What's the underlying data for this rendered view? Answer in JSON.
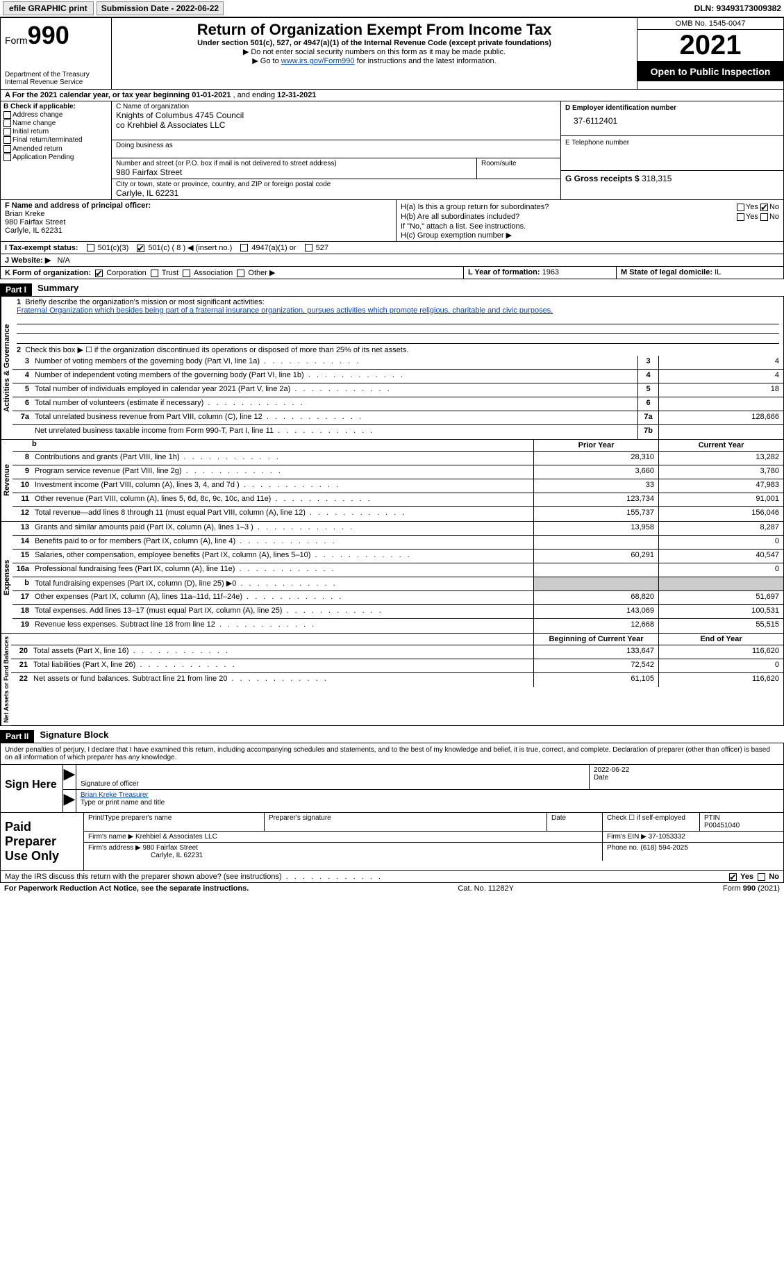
{
  "topbar": {
    "efile_btn": "efile GRAPHIC print",
    "sub_date_label": "Submission Date - 2022-06-22",
    "dln": "DLN: 93493173009382"
  },
  "header": {
    "form_word": "Form",
    "form_num": "990",
    "dept": "Department of the Treasury",
    "irs": "Internal Revenue Service",
    "title": "Return of Organization Exempt From Income Tax",
    "sub": "Under section 501(c), 527, or 4947(a)(1) of the Internal Revenue Code (except private foundations)",
    "note1": "▶ Do not enter social security numbers on this form as it may be made public.",
    "note2_pre": "▶ Go to ",
    "note2_link": "www.irs.gov/Form990",
    "note2_post": " for instructions and the latest information.",
    "omb": "OMB No. 1545-0047",
    "year": "2021",
    "open": "Open to Public Inspection"
  },
  "section_a": {
    "text_pre": "A For the 2021 calendar year, or tax year beginning ",
    "begin": "01-01-2021",
    "mid": " , and ending ",
    "end": "12-31-2021"
  },
  "col_b": {
    "hdr": "B Check if applicable:",
    "items": [
      "Address change",
      "Name change",
      "Initial return",
      "Final return/terminated",
      "Amended return",
      "Application Pending"
    ]
  },
  "col_c": {
    "name_lbl": "C Name of organization",
    "name1": "Knights of Columbus 4745 Council",
    "name2": "co Krehbiel & Associates LLC",
    "dba_lbl": "Doing business as",
    "addr_lbl": "Number and street (or P.O. box if mail is not delivered to street address)",
    "addr": "980 Fairfax Street",
    "room_lbl": "Room/suite",
    "city_lbl": "City or town, state or province, country, and ZIP or foreign postal code",
    "city": "Carlyle, IL  62231"
  },
  "col_d": {
    "d_lbl": "D Employer identification number",
    "ein": "37-6112401",
    "e_lbl": "E Telephone number",
    "g_lbl": "G Gross receipts $",
    "g_val": "318,315"
  },
  "officer": {
    "f_lbl": "F Name and address of principal officer:",
    "name": "Brian Kreke",
    "addr": "980 Fairfax Street",
    "city": "Carlyle, IL  62231",
    "ha": "H(a)  Is this a group return for subordinates?",
    "hb": "H(b)  Are all subordinates included?",
    "hb_note": "If \"No,\" attach a list. See instructions.",
    "hc": "H(c)  Group exemption number ▶",
    "yes": "Yes",
    "no": "No"
  },
  "status": {
    "i_lbl": "I  Tax-exempt status:",
    "c3": "501(c)(3)",
    "c_other": "501(c) ( 8 ) ◀ (insert no.)",
    "a4947": "4947(a)(1) or",
    "s527": "527"
  },
  "website": {
    "j_lbl": "J  Website: ▶",
    "val": "N/A"
  },
  "k_row": {
    "k_lbl": "K Form of organization:",
    "corp": "Corporation",
    "trust": "Trust",
    "assoc": "Association",
    "other": "Other ▶",
    "l_lbl": "L Year of formation:",
    "l_val": "1963",
    "m_lbl": "M State of legal domicile:",
    "m_val": "IL"
  },
  "part1": {
    "hdr": "Part I",
    "title": "Summary",
    "line1_lbl": "Briefly describe the organization's mission or most significant activities:",
    "line1_text": "Fraternal Organization which besides being part of a fraternal insurance organization, pursues activities which promote religious, charitable and civic purposes.",
    "line2": "Check this box ▶ ☐ if the organization discontinued its operations or disposed of more than 25% of its net assets.",
    "rows_gov": [
      {
        "n": "3",
        "d": "Number of voting members of the governing body (Part VI, line 1a)",
        "box": "3",
        "v": "4"
      },
      {
        "n": "4",
        "d": "Number of independent voting members of the governing body (Part VI, line 1b)",
        "box": "4",
        "v": "4"
      },
      {
        "n": "5",
        "d": "Total number of individuals employed in calendar year 2021 (Part V, line 2a)",
        "box": "5",
        "v": "18"
      },
      {
        "n": "6",
        "d": "Total number of volunteers (estimate if necessary)",
        "box": "6",
        "v": ""
      },
      {
        "n": "7a",
        "d": "Total unrelated business revenue from Part VIII, column (C), line 12",
        "box": "7a",
        "v": "128,666"
      },
      {
        "n": "",
        "d": "Net unrelated business taxable income from Form 990-T, Part I, line 11",
        "box": "7b",
        "v": ""
      }
    ],
    "prior_hdr": "Prior Year",
    "curr_hdr": "Current Year",
    "rows_rev": [
      {
        "n": "8",
        "d": "Contributions and grants (Part VIII, line 1h)",
        "p": "28,310",
        "c": "13,282"
      },
      {
        "n": "9",
        "d": "Program service revenue (Part VIII, line 2g)",
        "p": "3,660",
        "c": "3,780"
      },
      {
        "n": "10",
        "d": "Investment income (Part VIII, column (A), lines 3, 4, and 7d )",
        "p": "33",
        "c": "47,983"
      },
      {
        "n": "11",
        "d": "Other revenue (Part VIII, column (A), lines 5, 6d, 8c, 9c, 10c, and 11e)",
        "p": "123,734",
        "c": "91,001"
      },
      {
        "n": "12",
        "d": "Total revenue—add lines 8 through 11 (must equal Part VIII, column (A), line 12)",
        "p": "155,737",
        "c": "156,046"
      }
    ],
    "rows_exp": [
      {
        "n": "13",
        "d": "Grants and similar amounts paid (Part IX, column (A), lines 1–3 )",
        "p": "13,958",
        "c": "8,287"
      },
      {
        "n": "14",
        "d": "Benefits paid to or for members (Part IX, column (A), line 4)",
        "p": "",
        "c": "0"
      },
      {
        "n": "15",
        "d": "Salaries, other compensation, employee benefits (Part IX, column (A), lines 5–10)",
        "p": "60,291",
        "c": "40,547"
      },
      {
        "n": "16a",
        "d": "Professional fundraising fees (Part IX, column (A), line 11e)",
        "p": "",
        "c": "0"
      },
      {
        "n": "b",
        "d": "Total fundraising expenses (Part IX, column (D), line 25) ▶0",
        "p": "GRAY",
        "c": "GRAY"
      },
      {
        "n": "17",
        "d": "Other expenses (Part IX, column (A), lines 11a–11d, 11f–24e)",
        "p": "68,820",
        "c": "51,697"
      },
      {
        "n": "18",
        "d": "Total expenses. Add lines 13–17 (must equal Part IX, column (A), line 25)",
        "p": "143,069",
        "c": "100,531"
      },
      {
        "n": "19",
        "d": "Revenue less expenses. Subtract line 18 from line 12",
        "p": "12,668",
        "c": "55,515"
      }
    ],
    "beg_hdr": "Beginning of Current Year",
    "end_hdr": "End of Year",
    "rows_net": [
      {
        "n": "20",
        "d": "Total assets (Part X, line 16)",
        "p": "133,647",
        "c": "116,620"
      },
      {
        "n": "21",
        "d": "Total liabilities (Part X, line 26)",
        "p": "72,542",
        "c": "0"
      },
      {
        "n": "22",
        "d": "Net assets or fund balances. Subtract line 21 from line 20",
        "p": "61,105",
        "c": "116,620"
      }
    ],
    "side_gov": "Activities & Governance",
    "side_rev": "Revenue",
    "side_exp": "Expenses",
    "side_net": "Net Assets or Fund Balances"
  },
  "part2": {
    "hdr": "Part II",
    "title": "Signature Block",
    "intro": "Under penalties of perjury, I declare that I have examined this return, including accompanying schedules and statements, and to the best of my knowledge and belief, it is true, correct, and complete. Declaration of preparer (other than officer) is based on all information of which preparer has any knowledge.",
    "sign_here": "Sign Here",
    "sig_officer": "Signature of officer",
    "sig_date": "2022-06-22",
    "date_lbl": "Date",
    "name_title": "Brian Kreke  Treasurer",
    "type_lbl": "Type or print name and title",
    "paid": "Paid Preparer Use Only",
    "print_lbl": "Print/Type preparer's name",
    "prep_sig_lbl": "Preparer's signature",
    "check_lbl": "Check ☐ if self-employed",
    "ptin_lbl": "PTIN",
    "ptin": "P00451040",
    "firm_name_lbl": "Firm's name    ▶",
    "firm_name": "Krehbiel & Associates LLC",
    "firm_ein_lbl": "Firm's EIN ▶",
    "firm_ein": "37-1053332",
    "firm_addr_lbl": "Firm's address ▶",
    "firm_addr1": "980 Fairfax Street",
    "firm_addr2": "Carlyle, IL  62231",
    "phone_lbl": "Phone no.",
    "phone": "(618) 594-2025"
  },
  "discuss": {
    "q": "May the IRS discuss this return with the preparer shown above? (see instructions)",
    "yes": "Yes",
    "no": "No"
  },
  "footer": {
    "left": "For Paperwork Reduction Act Notice, see the separate instructions.",
    "center": "Cat. No. 11282Y",
    "right": "Form 990 (2021)"
  }
}
